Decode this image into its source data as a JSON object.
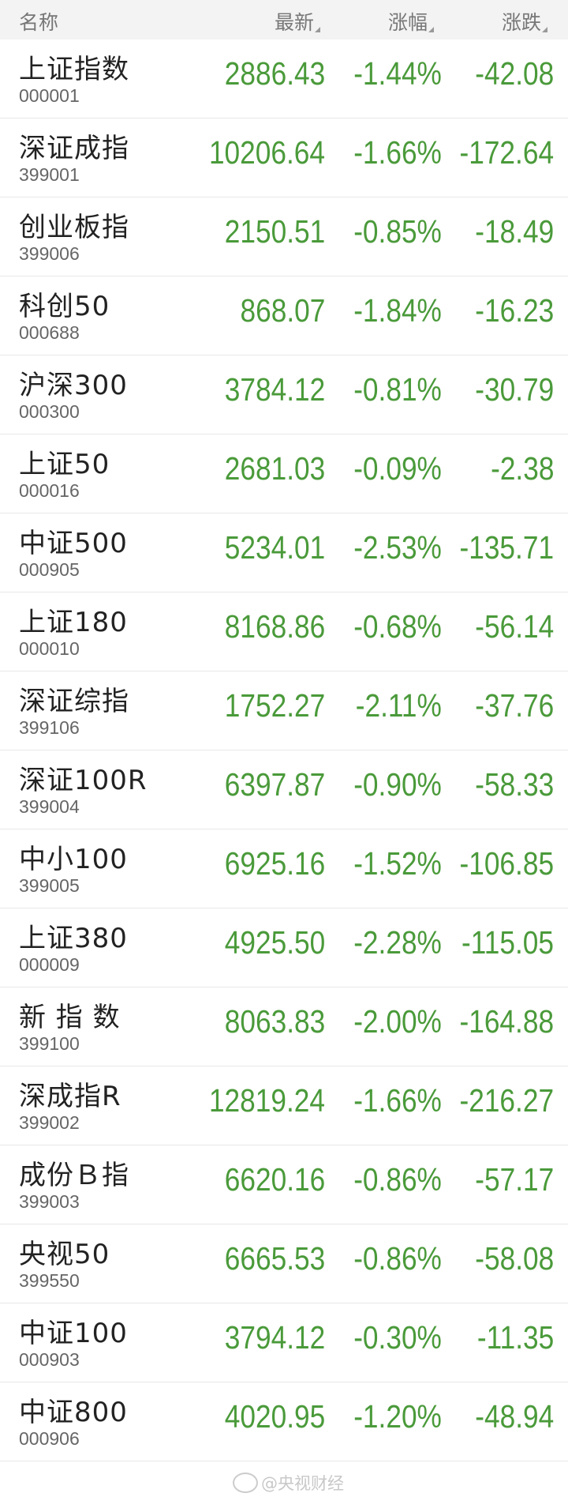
{
  "header": {
    "name": "名称",
    "latest": "最新",
    "change_pct": "涨幅",
    "change": "涨跌"
  },
  "colors": {
    "down": "#4a9a3a",
    "header_bg": "#f3f3f3"
  },
  "rows": [
    {
      "name": "上证指数",
      "code": "000001",
      "price": "2886.43",
      "pct": "-1.44%",
      "chg": "-42.08"
    },
    {
      "name": "深证成指",
      "code": "399001",
      "price": "10206.64",
      "pct": "-1.66%",
      "chg": "-172.64"
    },
    {
      "name": "创业板指",
      "code": "399006",
      "price": "2150.51",
      "pct": "-0.85%",
      "chg": "-18.49"
    },
    {
      "name": "科创50",
      "code": "000688",
      "price": "868.07",
      "pct": "-1.84%",
      "chg": "-16.23"
    },
    {
      "name": "沪深300",
      "code": "000300",
      "price": "3784.12",
      "pct": "-0.81%",
      "chg": "-30.79"
    },
    {
      "name": "上证50",
      "code": "000016",
      "price": "2681.03",
      "pct": "-0.09%",
      "chg": "-2.38"
    },
    {
      "name": "中证500",
      "code": "000905",
      "price": "5234.01",
      "pct": "-2.53%",
      "chg": "-135.71"
    },
    {
      "name": "上证180",
      "code": "000010",
      "price": "8168.86",
      "pct": "-0.68%",
      "chg": "-56.14"
    },
    {
      "name": "深证综指",
      "code": "399106",
      "price": "1752.27",
      "pct": "-2.11%",
      "chg": "-37.76"
    },
    {
      "name": "深证100R",
      "code": "399004",
      "price": "6397.87",
      "pct": "-0.90%",
      "chg": "-58.33"
    },
    {
      "name": "中小100",
      "code": "399005",
      "price": "6925.16",
      "pct": "-1.52%",
      "chg": "-106.85"
    },
    {
      "name": "上证380",
      "code": "000009",
      "price": "4925.50",
      "pct": "-2.28%",
      "chg": "-115.05"
    },
    {
      "name": "新 指 数",
      "code": "399100",
      "price": "8063.83",
      "pct": "-2.00%",
      "chg": "-164.88"
    },
    {
      "name": "深成指R",
      "code": "399002",
      "price": "12819.24",
      "pct": "-1.66%",
      "chg": "-216.27"
    },
    {
      "name": "成份Ｂ指",
      "code": "399003",
      "price": "6620.16",
      "pct": "-0.86%",
      "chg": "-57.17"
    },
    {
      "name": "央视50",
      "code": "399550",
      "price": "6665.53",
      "pct": "-0.86%",
      "chg": "-58.08"
    },
    {
      "name": "中证100",
      "code": "000903",
      "price": "3794.12",
      "pct": "-0.30%",
      "chg": "-11.35"
    },
    {
      "name": "中证800",
      "code": "000906",
      "price": "4020.95",
      "pct": "-1.20%",
      "chg": "-48.94"
    }
  ],
  "watermark": "@央视财经"
}
